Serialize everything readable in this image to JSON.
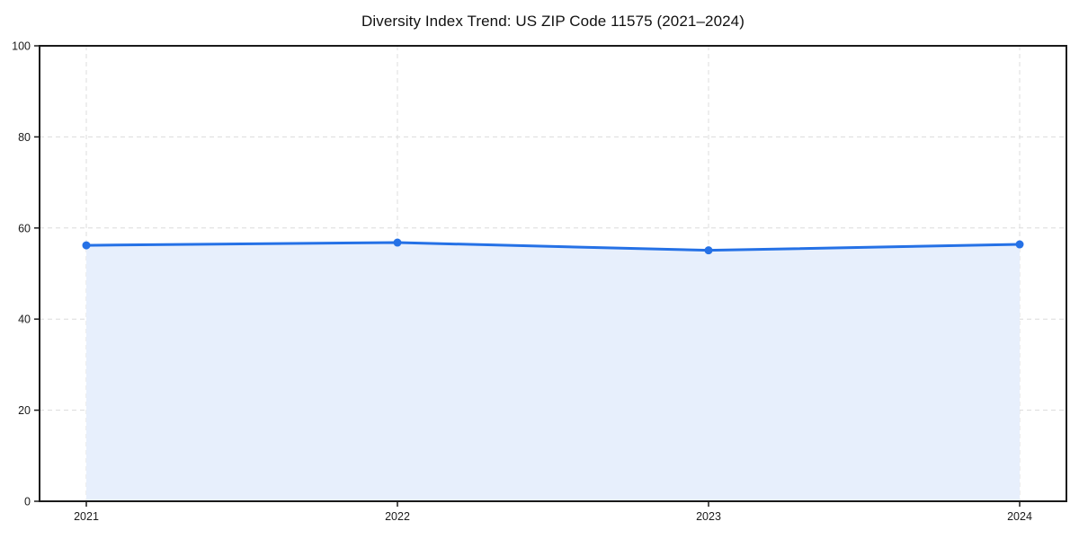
{
  "chart_data": {
    "type": "area",
    "title": "Diversity Index Trend: US ZIP Code 11575 (2021–2024)",
    "categories": [
      "2021",
      "2022",
      "2023",
      "2024"
    ],
    "series": [
      {
        "name": "Diversity Index",
        "values": [
          56.2,
          56.8,
          55.1,
          56.4
        ]
      }
    ],
    "xlabel": "",
    "ylabel": "",
    "ylim": [
      0,
      100
    ],
    "yticks": [
      0,
      20,
      40,
      60,
      80,
      100
    ],
    "grid": true,
    "grid_style": "dashed",
    "legend": "none",
    "colors": {
      "line": "#2571e6",
      "marker": "#2571e6",
      "fill": "#e7effc",
      "grid": "#dcdcdc",
      "axis": "#1a1a1a",
      "text": "#1a1a1a",
      "background": "#ffffff"
    }
  }
}
